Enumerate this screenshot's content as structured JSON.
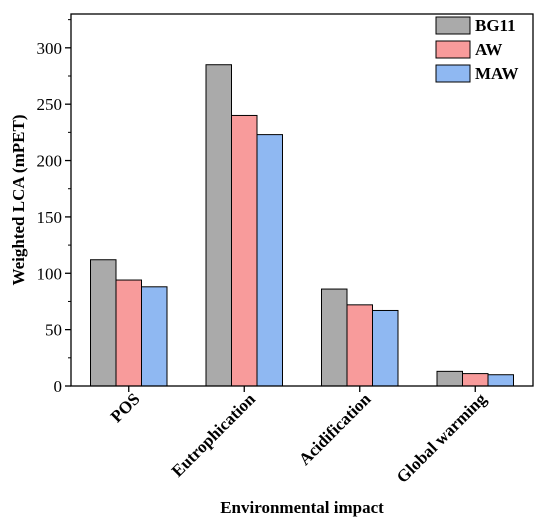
{
  "chart_data": {
    "type": "bar",
    "title": "",
    "xlabel": "Environmental impact",
    "ylabel": "Weighted LCA (mPET)",
    "categories": [
      "POS",
      "Eutrophication",
      "Acidification",
      "Global warming"
    ],
    "series": [
      {
        "name": "BG11",
        "color": "#aaaaaa",
        "values": [
          112,
          285,
          86,
          13
        ]
      },
      {
        "name": "AW",
        "color": "#f89b9b",
        "values": [
          94,
          240,
          72,
          11
        ]
      },
      {
        "name": "MAW",
        "color": "#8fb8f2",
        "values": [
          88,
          223,
          67,
          10
        ]
      }
    ],
    "ylim": [
      0,
      330
    ],
    "yticks": [
      0,
      50,
      100,
      150,
      200,
      250,
      300
    ],
    "grid": false,
    "legend_position": "top-right"
  }
}
